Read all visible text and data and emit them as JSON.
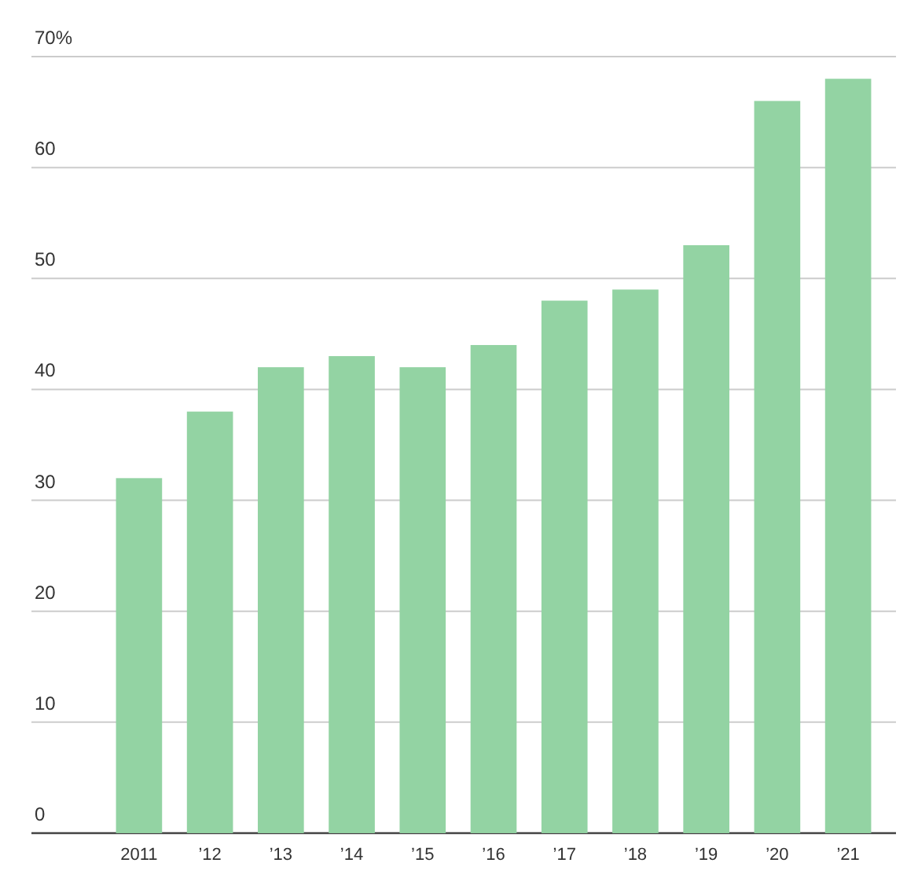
{
  "chart_data": {
    "type": "bar",
    "categories": [
      "2011",
      "’12",
      "’13",
      "’14",
      "’15",
      "’16",
      "’17",
      "’18",
      "’19",
      "’20",
      "’21"
    ],
    "values": [
      32,
      38,
      42,
      43,
      42,
      44,
      48,
      49,
      53,
      66,
      68
    ],
    "color": "#93d3a3",
    "ylim": [
      0,
      70
    ],
    "yticks": [
      0,
      10,
      20,
      30,
      40,
      50,
      60,
      {
        "value": 70,
        "label": "70%"
      }
    ],
    "grid": "y"
  }
}
